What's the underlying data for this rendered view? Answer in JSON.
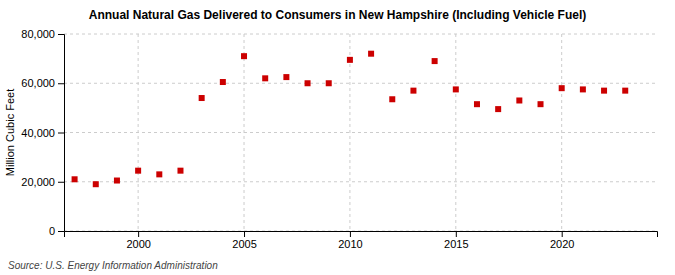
{
  "chart_data": {
    "type": "scatter",
    "title": "Annual Natural Gas Delivered to Consumers in New Hampshire (Including Vehicle Fuel)",
    "ylabel": "Million Cubic Feet",
    "source": "Source: U.S. Energy Information Administration",
    "x": [
      1997,
      1998,
      1999,
      2000,
      2001,
      2002,
      2003,
      2004,
      2005,
      2006,
      2007,
      2008,
      2009,
      2010,
      2011,
      2012,
      2013,
      2014,
      2015,
      2016,
      2017,
      2018,
      2019,
      2020,
      2021,
      2022,
      2023
    ],
    "values": [
      21000,
      19000,
      20500,
      24500,
      23000,
      24500,
      54000,
      60500,
      71000,
      62000,
      62500,
      60000,
      60000,
      69500,
      72000,
      53500,
      57000,
      69000,
      57500,
      51500,
      49500,
      53000,
      51500,
      58000,
      57500,
      57000,
      57000
    ],
    "color": "#cc0000",
    "marker": "square",
    "xlim": [
      1996.5,
      2024.5
    ],
    "xticks": [
      2000,
      2005,
      2010,
      2015,
      2020
    ],
    "ylim": [
      0,
      80000
    ],
    "yticks": [
      0,
      {
        "value": 20000,
        "label": "20,000"
      },
      {
        "value": 40000,
        "label": "40,000"
      },
      {
        "value": 60000,
        "label": "60,000"
      },
      {
        "value": 80000,
        "label": "80,000"
      }
    ],
    "grid": true
  }
}
